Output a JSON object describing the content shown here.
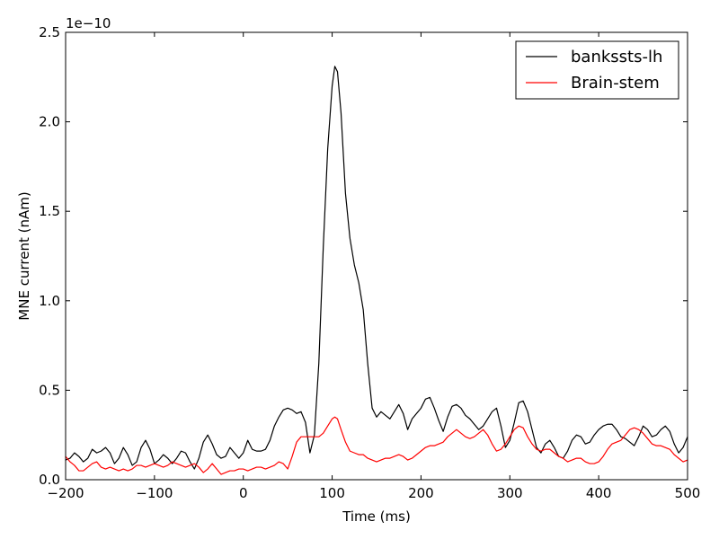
{
  "chart_data": {
    "type": "line",
    "title": "",
    "xlabel": "Time (ms)",
    "ylabel": "MNE current (nAm)",
    "y_offset_label": "1e−10",
    "xlim": [
      -200,
      500
    ],
    "ylim": [
      0.0,
      2.5
    ],
    "xticks": [
      -200,
      -100,
      0,
      100,
      200,
      300,
      400,
      500
    ],
    "xtick_labels": [
      "−200",
      "−100",
      "0",
      "100",
      "200",
      "300",
      "400",
      "500"
    ],
    "yticks": [
      0.0,
      0.5,
      1.0,
      1.5,
      2.0,
      2.5
    ],
    "ytick_labels": [
      "0.0",
      "0.5",
      "1.0",
      "1.5",
      "2.0",
      "2.5"
    ],
    "grid": false,
    "legend_position": "top-right",
    "series": [
      {
        "name": "bankssts-lh",
        "color": "#000000",
        "points": [
          [
            -200,
            0.11
          ],
          [
            -195,
            0.12
          ],
          [
            -190,
            0.15
          ],
          [
            -185,
            0.13
          ],
          [
            -180,
            0.1
          ],
          [
            -175,
            0.12
          ],
          [
            -170,
            0.17
          ],
          [
            -165,
            0.15
          ],
          [
            -160,
            0.16
          ],
          [
            -155,
            0.18
          ],
          [
            -150,
            0.15
          ],
          [
            -145,
            0.09
          ],
          [
            -140,
            0.12
          ],
          [
            -135,
            0.18
          ],
          [
            -130,
            0.14
          ],
          [
            -125,
            0.08
          ],
          [
            -120,
            0.1
          ],
          [
            -115,
            0.18
          ],
          [
            -110,
            0.22
          ],
          [
            -105,
            0.17
          ],
          [
            -100,
            0.09
          ],
          [
            -95,
            0.11
          ],
          [
            -90,
            0.14
          ],
          [
            -85,
            0.12
          ],
          [
            -80,
            0.09
          ],
          [
            -75,
            0.12
          ],
          [
            -70,
            0.16
          ],
          [
            -65,
            0.15
          ],
          [
            -60,
            0.1
          ],
          [
            -55,
            0.06
          ],
          [
            -50,
            0.12
          ],
          [
            -45,
            0.21
          ],
          [
            -40,
            0.25
          ],
          [
            -35,
            0.2
          ],
          [
            -30,
            0.14
          ],
          [
            -25,
            0.12
          ],
          [
            -20,
            0.13
          ],
          [
            -15,
            0.18
          ],
          [
            -10,
            0.15
          ],
          [
            -5,
            0.12
          ],
          [
            0,
            0.15
          ],
          [
            5,
            0.22
          ],
          [
            10,
            0.17
          ],
          [
            15,
            0.16
          ],
          [
            20,
            0.16
          ],
          [
            25,
            0.17
          ],
          [
            30,
            0.22
          ],
          [
            35,
            0.3
          ],
          [
            40,
            0.35
          ],
          [
            45,
            0.39
          ],
          [
            50,
            0.4
          ],
          [
            55,
            0.39
          ],
          [
            60,
            0.37
          ],
          [
            65,
            0.38
          ],
          [
            70,
            0.32
          ],
          [
            75,
            0.15
          ],
          [
            80,
            0.25
          ],
          [
            85,
            0.65
          ],
          [
            90,
            1.3
          ],
          [
            95,
            1.85
          ],
          [
            100,
            2.2
          ],
          [
            103,
            2.31
          ],
          [
            106,
            2.28
          ],
          [
            110,
            2.05
          ],
          [
            115,
            1.6
          ],
          [
            120,
            1.35
          ],
          [
            125,
            1.2
          ],
          [
            130,
            1.1
          ],
          [
            135,
            0.95
          ],
          [
            140,
            0.65
          ],
          [
            145,
            0.4
          ],
          [
            150,
            0.35
          ],
          [
            155,
            0.38
          ],
          [
            160,
            0.36
          ],
          [
            165,
            0.34
          ],
          [
            170,
            0.38
          ],
          [
            175,
            0.42
          ],
          [
            180,
            0.37
          ],
          [
            185,
            0.28
          ],
          [
            190,
            0.34
          ],
          [
            195,
            0.37
          ],
          [
            200,
            0.4
          ],
          [
            205,
            0.45
          ],
          [
            210,
            0.46
          ],
          [
            215,
            0.4
          ],
          [
            220,
            0.33
          ],
          [
            225,
            0.27
          ],
          [
            230,
            0.35
          ],
          [
            235,
            0.41
          ],
          [
            240,
            0.42
          ],
          [
            245,
            0.4
          ],
          [
            250,
            0.36
          ],
          [
            255,
            0.34
          ],
          [
            260,
            0.31
          ],
          [
            265,
            0.28
          ],
          [
            270,
            0.3
          ],
          [
            275,
            0.34
          ],
          [
            280,
            0.38
          ],
          [
            285,
            0.4
          ],
          [
            290,
            0.3
          ],
          [
            295,
            0.18
          ],
          [
            300,
            0.22
          ],
          [
            305,
            0.32
          ],
          [
            310,
            0.43
          ],
          [
            315,
            0.44
          ],
          [
            320,
            0.38
          ],
          [
            325,
            0.28
          ],
          [
            330,
            0.18
          ],
          [
            335,
            0.15
          ],
          [
            340,
            0.2
          ],
          [
            345,
            0.22
          ],
          [
            350,
            0.18
          ],
          [
            355,
            0.13
          ],
          [
            360,
            0.12
          ],
          [
            365,
            0.16
          ],
          [
            370,
            0.22
          ],
          [
            375,
            0.25
          ],
          [
            380,
            0.24
          ],
          [
            385,
            0.2
          ],
          [
            390,
            0.21
          ],
          [
            395,
            0.25
          ],
          [
            400,
            0.28
          ],
          [
            405,
            0.3
          ],
          [
            410,
            0.31
          ],
          [
            415,
            0.31
          ],
          [
            420,
            0.28
          ],
          [
            425,
            0.24
          ],
          [
            430,
            0.23
          ],
          [
            435,
            0.21
          ],
          [
            440,
            0.19
          ],
          [
            445,
            0.24
          ],
          [
            450,
            0.3
          ],
          [
            455,
            0.28
          ],
          [
            460,
            0.24
          ],
          [
            465,
            0.25
          ],
          [
            470,
            0.28
          ],
          [
            475,
            0.3
          ],
          [
            480,
            0.27
          ],
          [
            485,
            0.2
          ],
          [
            490,
            0.15
          ],
          [
            495,
            0.18
          ],
          [
            500,
            0.24
          ]
        ]
      },
      {
        "name": "Brain-stem",
        "color": "#ff0000",
        "points": [
          [
            -200,
            0.13
          ],
          [
            -195,
            0.1
          ],
          [
            -190,
            0.08
          ],
          [
            -185,
            0.05
          ],
          [
            -180,
            0.05
          ],
          [
            -175,
            0.07
          ],
          [
            -170,
            0.09
          ],
          [
            -165,
            0.1
          ],
          [
            -160,
            0.07
          ],
          [
            -155,
            0.06
          ],
          [
            -150,
            0.07
          ],
          [
            -145,
            0.06
          ],
          [
            -140,
            0.05
          ],
          [
            -135,
            0.06
          ],
          [
            -130,
            0.05
          ],
          [
            -125,
            0.06
          ],
          [
            -120,
            0.08
          ],
          [
            -115,
            0.08
          ],
          [
            -110,
            0.07
          ],
          [
            -105,
            0.08
          ],
          [
            -100,
            0.09
          ],
          [
            -95,
            0.08
          ],
          [
            -90,
            0.07
          ],
          [
            -85,
            0.08
          ],
          [
            -80,
            0.1
          ],
          [
            -75,
            0.09
          ],
          [
            -70,
            0.08
          ],
          [
            -65,
            0.07
          ],
          [
            -60,
            0.08
          ],
          [
            -55,
            0.09
          ],
          [
            -50,
            0.07
          ],
          [
            -45,
            0.04
          ],
          [
            -40,
            0.06
          ],
          [
            -35,
            0.09
          ],
          [
            -30,
            0.06
          ],
          [
            -25,
            0.03
          ],
          [
            -20,
            0.04
          ],
          [
            -15,
            0.05
          ],
          [
            -10,
            0.05
          ],
          [
            -5,
            0.06
          ],
          [
            0,
            0.06
          ],
          [
            5,
            0.05
          ],
          [
            10,
            0.06
          ],
          [
            15,
            0.07
          ],
          [
            20,
            0.07
          ],
          [
            25,
            0.06
          ],
          [
            30,
            0.07
          ],
          [
            35,
            0.08
          ],
          [
            40,
            0.1
          ],
          [
            45,
            0.09
          ],
          [
            50,
            0.06
          ],
          [
            55,
            0.13
          ],
          [
            60,
            0.21
          ],
          [
            65,
            0.24
          ],
          [
            70,
            0.24
          ],
          [
            75,
            0.24
          ],
          [
            80,
            0.24
          ],
          [
            85,
            0.24
          ],
          [
            90,
            0.26
          ],
          [
            95,
            0.3
          ],
          [
            100,
            0.34
          ],
          [
            103,
            0.35
          ],
          [
            106,
            0.34
          ],
          [
            110,
            0.28
          ],
          [
            115,
            0.21
          ],
          [
            120,
            0.16
          ],
          [
            125,
            0.15
          ],
          [
            130,
            0.14
          ],
          [
            135,
            0.14
          ],
          [
            140,
            0.12
          ],
          [
            145,
            0.11
          ],
          [
            150,
            0.1
          ],
          [
            155,
            0.11
          ],
          [
            160,
            0.12
          ],
          [
            165,
            0.12
          ],
          [
            170,
            0.13
          ],
          [
            175,
            0.14
          ],
          [
            180,
            0.13
          ],
          [
            185,
            0.11
          ],
          [
            190,
            0.12
          ],
          [
            195,
            0.14
          ],
          [
            200,
            0.16
          ],
          [
            205,
            0.18
          ],
          [
            210,
            0.19
          ],
          [
            215,
            0.19
          ],
          [
            220,
            0.2
          ],
          [
            225,
            0.21
          ],
          [
            230,
            0.24
          ],
          [
            235,
            0.26
          ],
          [
            240,
            0.28
          ],
          [
            245,
            0.26
          ],
          [
            250,
            0.24
          ],
          [
            255,
            0.23
          ],
          [
            260,
            0.24
          ],
          [
            265,
            0.26
          ],
          [
            270,
            0.28
          ],
          [
            275,
            0.25
          ],
          [
            280,
            0.2
          ],
          [
            285,
            0.16
          ],
          [
            290,
            0.17
          ],
          [
            295,
            0.2
          ],
          [
            300,
            0.24
          ],
          [
            305,
            0.28
          ],
          [
            310,
            0.3
          ],
          [
            315,
            0.29
          ],
          [
            320,
            0.24
          ],
          [
            325,
            0.2
          ],
          [
            330,
            0.17
          ],
          [
            335,
            0.16
          ],
          [
            340,
            0.17
          ],
          [
            345,
            0.17
          ],
          [
            350,
            0.15
          ],
          [
            355,
            0.13
          ],
          [
            360,
            0.12
          ],
          [
            365,
            0.1
          ],
          [
            370,
            0.11
          ],
          [
            375,
            0.12
          ],
          [
            380,
            0.12
          ],
          [
            385,
            0.1
          ],
          [
            390,
            0.09
          ],
          [
            395,
            0.09
          ],
          [
            400,
            0.1
          ],
          [
            405,
            0.13
          ],
          [
            410,
            0.17
          ],
          [
            415,
            0.2
          ],
          [
            420,
            0.21
          ],
          [
            425,
            0.22
          ],
          [
            430,
            0.25
          ],
          [
            435,
            0.28
          ],
          [
            440,
            0.29
          ],
          [
            445,
            0.28
          ],
          [
            450,
            0.26
          ],
          [
            455,
            0.23
          ],
          [
            460,
            0.2
          ],
          [
            465,
            0.19
          ],
          [
            470,
            0.19
          ],
          [
            475,
            0.18
          ],
          [
            480,
            0.17
          ],
          [
            485,
            0.14
          ],
          [
            490,
            0.12
          ],
          [
            495,
            0.1
          ],
          [
            500,
            0.11
          ]
        ]
      }
    ]
  }
}
